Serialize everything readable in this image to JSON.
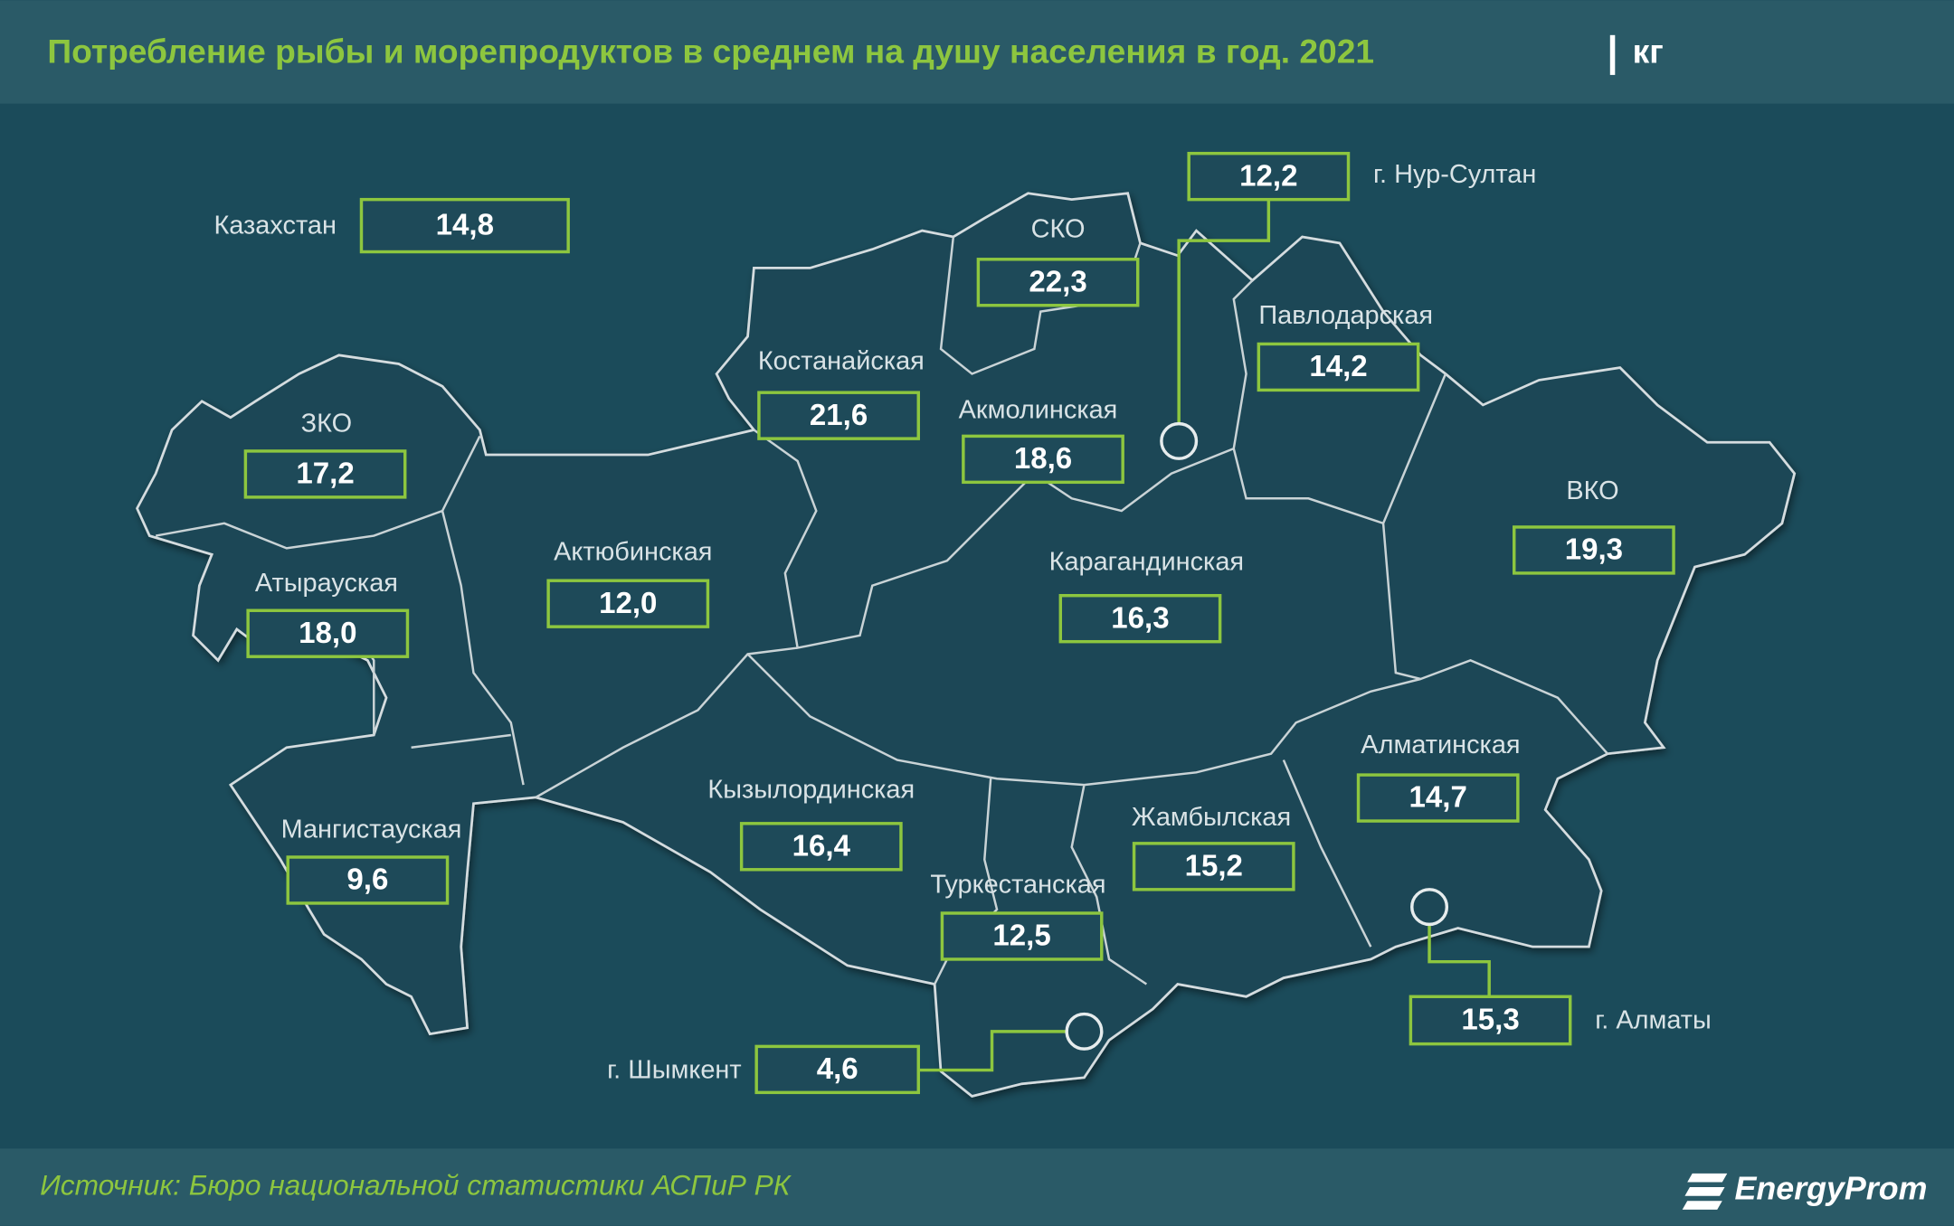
{
  "header": {
    "title": "Потребление рыбы и морепродуктов в среднем на душу населения в год. 2021",
    "unit": "кг"
  },
  "country": {
    "name": "Казахстан",
    "value": "14,8"
  },
  "regions": [
    {
      "name": "СКО",
      "value": "22,3"
    },
    {
      "name": "Костанайская",
      "value": "21,6"
    },
    {
      "name": "Акмолинская",
      "value": "18,6"
    },
    {
      "name": "Павлодарская",
      "value": "14,2"
    },
    {
      "name": "ЗКО",
      "value": "17,2"
    },
    {
      "name": "Атырауская",
      "value": "18,0"
    },
    {
      "name": "Актюбинская",
      "value": "12,0"
    },
    {
      "name": "Карагандинская",
      "value": "16,3"
    },
    {
      "name": "ВКО",
      "value": "19,3"
    },
    {
      "name": "Алматинская",
      "value": "14,7"
    },
    {
      "name": "Кызылординская",
      "value": "16,4"
    },
    {
      "name": "Жамбылская",
      "value": "15,2"
    },
    {
      "name": "Мангистауская",
      "value": "9,6"
    },
    {
      "name": "Туркестанская",
      "value": "12,5"
    }
  ],
  "cities": [
    {
      "name": "г. Нур-Султан",
      "value": "12,2"
    },
    {
      "name": "г. Алматы",
      "value": "15,3"
    },
    {
      "name": "г. Шымкент",
      "value": "4,6"
    }
  ],
  "footer": {
    "source": "Источник: Бюро национальной статистики АСПиР РК",
    "logo": "EnergyProm"
  }
}
